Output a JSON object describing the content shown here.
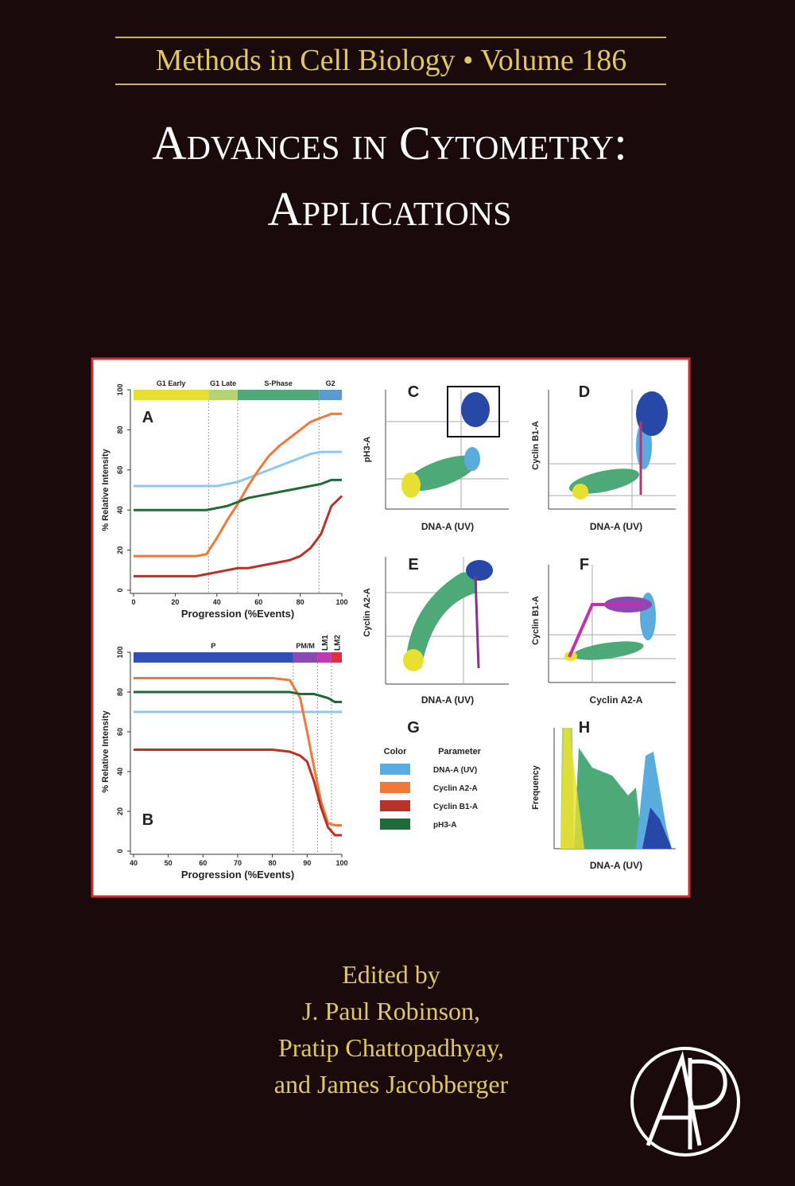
{
  "header": {
    "series_title": "Methods in Cell Biology • Volume 186",
    "title_line1": "Advances in Cytometry:",
    "title_line2": "Applications"
  },
  "figure": {
    "panel_a": {
      "letter": "A",
      "ylabel": "% Relative Intensity",
      "xlabel": "Progression (%Events)",
      "xlim": [
        0,
        100
      ],
      "ylim": [
        0,
        100
      ],
      "xticks": [
        0,
        20,
        40,
        60,
        80,
        100
      ],
      "yticks": [
        0,
        20,
        40,
        60,
        80,
        100
      ],
      "phases": [
        {
          "label": "G1 Early",
          "start": 0,
          "end": 36,
          "color": "#e8e030"
        },
        {
          "label": "G1 Late",
          "start": 36,
          "end": 50,
          "color": "#b5d56a"
        },
        {
          "label": "S-Phase",
          "start": 50,
          "end": 89,
          "color": "#4daa78"
        },
        {
          "label": "G2",
          "start": 89,
          "end": 100,
          "color": "#5b9bd5"
        }
      ],
      "x": [
        0,
        10,
        20,
        30,
        35,
        40,
        45,
        50,
        55,
        60,
        65,
        70,
        75,
        80,
        85,
        90,
        95,
        100
      ],
      "series": [
        {
          "color": "#8ec8ee",
          "values": [
            52,
            52,
            52,
            52,
            52,
            52,
            53,
            54,
            56,
            58,
            60,
            62,
            64,
            66,
            68,
            69,
            69,
            69
          ]
        },
        {
          "color": "#f07838",
          "values": [
            17,
            17,
            17,
            17,
            18,
            26,
            35,
            43,
            52,
            60,
            67,
            72,
            76,
            80,
            84,
            86,
            88,
            88
          ]
        },
        {
          "color": "#1e6b38",
          "values": [
            40,
            40,
            40,
            40,
            40,
            41,
            42,
            44,
            46,
            47,
            48,
            49,
            50,
            51,
            52,
            53,
            55,
            55
          ]
        },
        {
          "color": "#b83228",
          "values": [
            7,
            7,
            7,
            7,
            8,
            9,
            10,
            11,
            11,
            12,
            13,
            14,
            15,
            17,
            21,
            28,
            42,
            47
          ]
        }
      ]
    },
    "panel_b": {
      "letter": "B",
      "ylabel": "% Relative Intensity",
      "xlabel": "Progression (%Events)",
      "xlim": [
        40,
        100
      ],
      "ylim": [
        0,
        100
      ],
      "xticks": [
        40,
        50,
        60,
        70,
        80,
        90,
        100
      ],
      "yticks": [
        0,
        20,
        40,
        60,
        80,
        100
      ],
      "phases": [
        {
          "label": "P",
          "start": 40,
          "end": 86,
          "color": "#3050b8"
        },
        {
          "label": "PM/M",
          "start": 86,
          "end": 93,
          "color": "#8a4ab0"
        },
        {
          "label": "LM1",
          "start": 93,
          "end": 97,
          "color": "#c03ab0"
        },
        {
          "label": "LM2",
          "start": 97,
          "end": 100,
          "color": "#e03040"
        }
      ],
      "x": [
        40,
        50,
        60,
        70,
        80,
        85,
        88,
        90,
        92,
        94,
        96,
        98,
        100
      ],
      "series": [
        {
          "color": "#8ec8ee",
          "values": [
            70,
            70,
            70,
            70,
            70,
            70,
            70,
            70,
            70,
            70,
            70,
            70,
            70
          ]
        },
        {
          "color": "#f07838",
          "values": [
            87,
            87,
            87,
            87,
            87,
            86,
            77,
            60,
            42,
            25,
            14,
            13,
            13
          ]
        },
        {
          "color": "#1e6b38",
          "values": [
            80,
            80,
            80,
            80,
            80,
            80,
            79,
            79,
            79,
            78,
            77,
            75,
            75
          ]
        },
        {
          "color": "#b83228",
          "values": [
            51,
            51,
            51,
            51,
            51,
            50,
            48,
            45,
            35,
            22,
            12,
            8,
            8
          ]
        }
      ]
    },
    "panel_c": {
      "letter": "C",
      "ylabel": "pH3-A",
      "xlabel": "DNA-A (UV)"
    },
    "panel_d": {
      "letter": "D",
      "ylabel": "Cyclin B1-A",
      "xlabel": "DNA-A (UV)"
    },
    "panel_e": {
      "letter": "E",
      "ylabel": "Cyclin A2-A",
      "xlabel": "DNA-A (UV)"
    },
    "panel_f": {
      "letter": "F",
      "ylabel": "Cyclin B1-A",
      "xlabel": "Cyclin A2-A"
    },
    "panel_g": {
      "letter": "G",
      "color_header": "Color",
      "parameter_header": "Parameter",
      "rows": [
        {
          "color": "#5aacdf",
          "label": "DNA-A (UV)"
        },
        {
          "color": "#f07838",
          "label": "Cyclin A2-A"
        },
        {
          "color": "#b83228",
          "label": "Cyclin B1-A"
        },
        {
          "color": "#1e6b38",
          "label": "pH3-A"
        }
      ]
    },
    "panel_h": {
      "letter": "H",
      "ylabel": "Frequency",
      "xlabel": "DNA-A (UV)"
    }
  },
  "editors": {
    "label": "Edited by",
    "names": [
      "J. Paul Robinson,",
      "Pratip Chattopadhyay,",
      "and James Jacobberger"
    ]
  }
}
